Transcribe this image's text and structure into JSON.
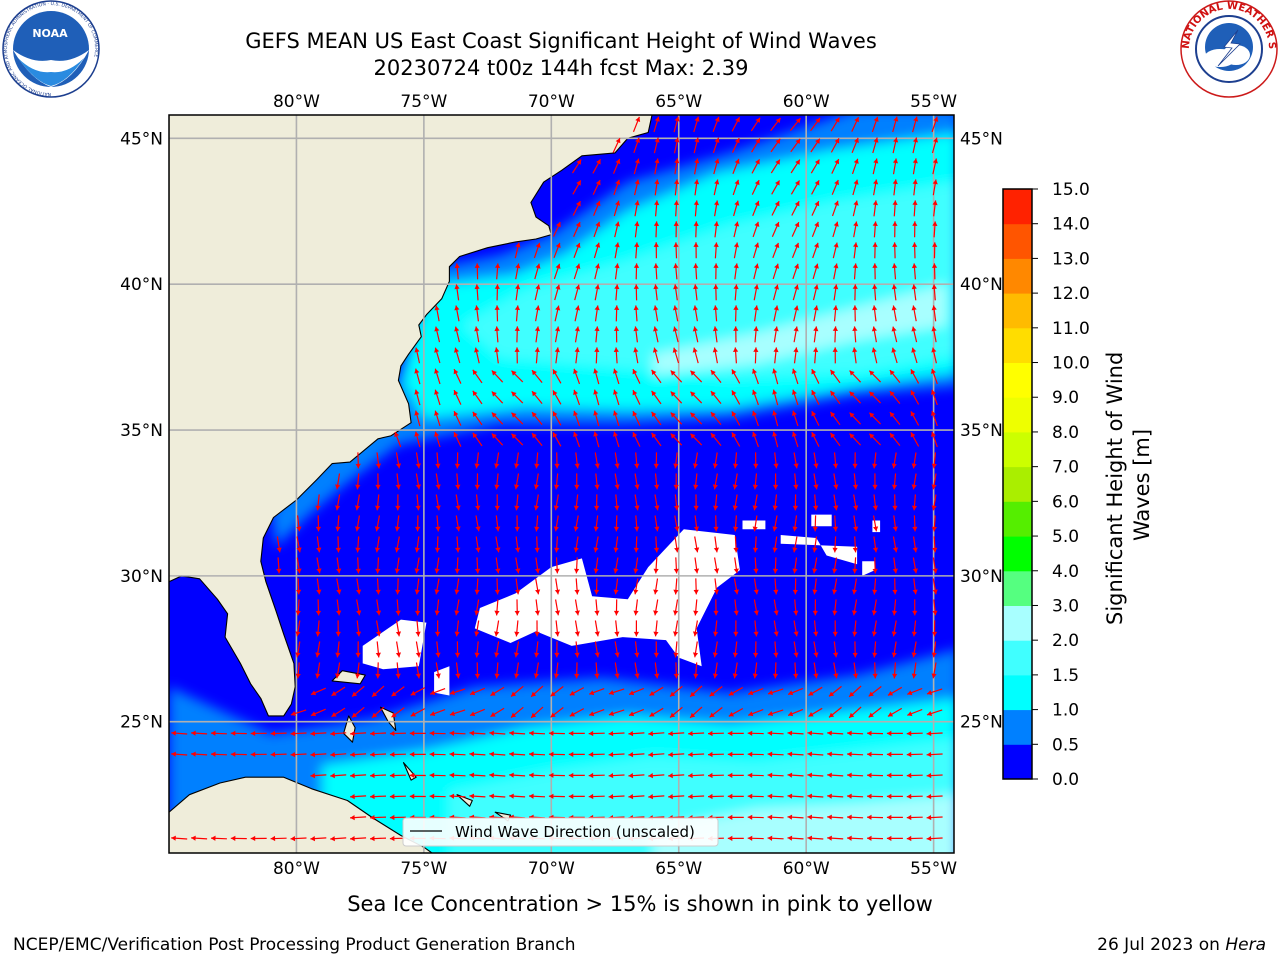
{
  "title": {
    "line1": "GEFS MEAN US East Coast Significant Height of Wind Waves",
    "line2": "20230724 t00z 144h fcst   Max: 2.39"
  },
  "logos": {
    "noaa": {
      "center_text": "NOAA",
      "ring_text": "NATIONAL OCEANIC AND ATMOSPHERIC ADMINISTRATION · U.S. DEPARTMENT OF COMMERCE"
    },
    "nws": {
      "ring_text": "NATIONAL WEATHER SERVICE"
    }
  },
  "map": {
    "lon_range": [
      -85,
      -54.2
    ],
    "lat_range": [
      20.5,
      45.8
    ],
    "lon_ticks": [
      {
        "value": -80,
        "label": "80°W"
      },
      {
        "value": -75,
        "label": "75°W"
      },
      {
        "value": -70,
        "label": "70°W"
      },
      {
        "value": -65,
        "label": "65°W"
      },
      {
        "value": -60,
        "label": "60°W"
      },
      {
        "value": -55,
        "label": "55°W"
      }
    ],
    "lat_ticks": [
      {
        "value": 45,
        "label": "45°N"
      },
      {
        "value": 40,
        "label": "40°N"
      },
      {
        "value": 35,
        "label": "35°N"
      },
      {
        "value": 30,
        "label": "30°N"
      },
      {
        "value": 25,
        "label": "25°N"
      }
    ],
    "grid": true,
    "legend": {
      "label": "Wind Wave Direction (unscaled)",
      "placement": "bottom-center"
    },
    "colors": {
      "land": "#efedda",
      "coast": "#000000",
      "grid": "#b0b0b0",
      "arrow": "#ff0000",
      "missing": "#ffffff"
    }
  },
  "colorbar": {
    "label": "Significant Height of Wind Waves [m]",
    "levels": [
      0.0,
      0.5,
      1.0,
      1.5,
      2.0,
      3.0,
      4.0,
      5.0,
      6.0,
      7.0,
      8.0,
      9.0,
      10.0,
      11.0,
      12.0,
      13.0,
      14.0,
      15.0
    ],
    "tick_labels": [
      "0.0",
      "0.5",
      "1.0",
      "1.5",
      "2.0",
      "3.0",
      "4.0",
      "5.0",
      "6.0",
      "7.0",
      "8.0",
      "9.0",
      "10.0",
      "11.0",
      "12.0",
      "13.0",
      "14.0",
      "15.0"
    ],
    "colors": [
      "#0000ff",
      "#0080ff",
      "#00ffff",
      "#40ffff",
      "#a8ffff",
      "#55ff80",
      "#00ff00",
      "#55ee00",
      "#aaee00",
      "#ccff00",
      "#eeff00",
      "#ffff00",
      "#ffdd00",
      "#ffbb00",
      "#ff8800",
      "#ff5500",
      "#ff2200"
    ]
  },
  "footer": {
    "note": "Sea Ice Concentration > 15% is shown in pink to yellow",
    "left": "NCEP/EMC/Verification Post Processing Product Generation Branch",
    "right_prefix": "26 Jul 2023 on ",
    "right_machine": "Hera"
  }
}
